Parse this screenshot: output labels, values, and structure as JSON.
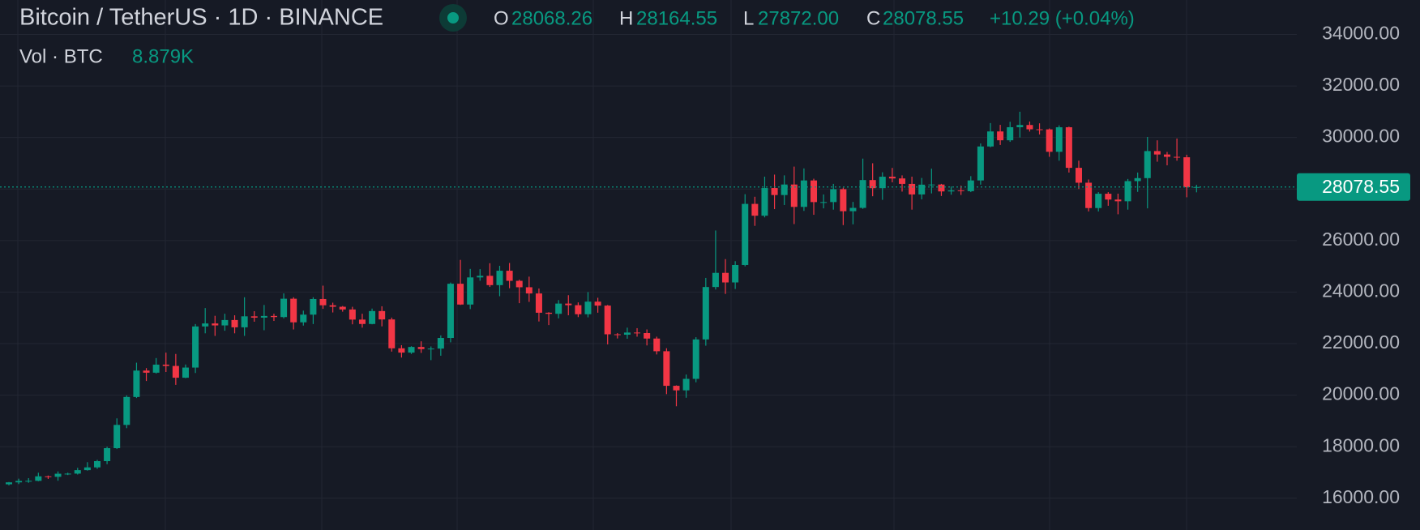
{
  "chart_data": {
    "type": "candlestick",
    "header": {
      "title": "Bitcoin / TetherUS · 1D · BINANCE",
      "open_label": "O",
      "open": "28068.26",
      "high_label": "H",
      "high": "28164.55",
      "low_label": "L",
      "low": "27872.00",
      "close_label": "C",
      "close": "28078.55",
      "change": "+10.29 (+0.04%)",
      "volume_label": "Vol · BTC",
      "volume": "8.879K"
    },
    "up_color": "#089981",
    "down_color": "#f23645",
    "open": [
      16541,
      16616,
      16672,
      16675,
      16850,
      16831,
      16951,
      16955,
      17091,
      17197,
      17440,
      17944,
      18846,
      19930,
      20954,
      20872,
      21185,
      21134,
      20677,
      21071,
      22667,
      22783,
      22707,
      22916,
      22633,
      23060,
      23009,
      23074,
      23031,
      23743,
      22827,
      23125,
      23732,
      23489,
      23431,
      23326,
      22933,
      22763,
      23264,
      22939,
      21819,
      21651,
      21870,
      21788,
      21808,
      22220,
      24324,
      23517,
      24570,
      24631,
      24271,
      24829,
      24437,
      24188,
      23947,
      23199,
      23157,
      23554,
      23492,
      23141,
      23629,
      23476,
      22362,
      22346,
      22430,
      22410,
      22197,
      21705,
      20363,
      20187,
      20633,
      22163,
      24197,
      24746,
      24375,
      25052,
      27423,
      26965,
      28038,
      27767,
      28175,
      27307,
      28333,
      27493,
      27494,
      27994,
      27139,
      27268,
      28348,
      28033,
      28478,
      28411,
      28199,
      27790,
      28169,
      28175,
      27907,
      27948,
      27917,
      28333,
      29652,
      30235,
      29892,
      30399,
      30485,
      30318,
      30315,
      29445,
      30397,
      28822,
      28245,
      27262,
      27817,
      27591,
      27525,
      28307,
      28423,
      29473,
      29340,
      29249,
      29233,
      28068.26
    ],
    "high": [
      16630,
      16760,
      16780,
      16990,
      16880,
      17040,
      16990,
      17180,
      17400,
      17490,
      18000,
      19100,
      19990,
      21260,
      21050,
      21440,
      21650,
      21600,
      21190,
      22760,
      23380,
      23080,
      23160,
      23100,
      23800,
      23260,
      23500,
      23160,
      23950,
      23800,
      23280,
      23800,
      24250,
      23590,
      23460,
      23430,
      23160,
      23360,
      23450,
      23010,
      21940,
      21900,
      22090,
      21890,
      22320,
      24370,
      25250,
      24900,
      24890,
      25120,
      25020,
      25130,
      24480,
      24600,
      24140,
      23220,
      23690,
      23880,
      23600,
      24000,
      23780,
      23500,
      22410,
      22620,
      22600,
      22550,
      22270,
      21820,
      20380,
      20800,
      22250,
      24550,
      26390,
      25280,
      25200,
      27800,
      27700,
      28480,
      28560,
      28530,
      28870,
      28800,
      28400,
      27790,
      28200,
      28050,
      27500,
      29180,
      29000,
      28650,
      28820,
      28530,
      28480,
      28430,
      28790,
      28200,
      28100,
      28130,
      28500,
      29770,
      30560,
      30490,
      30610,
      31000,
      30620,
      30550,
      30350,
      30470,
      30420,
      29100,
      28370,
      27880,
      27880,
      27820,
      28390,
      28640,
      30020,
      29890,
      29440,
      29960,
      29330,
      28164.55
    ],
    "low": [
      16500,
      16550,
      16600,
      16660,
      16750,
      16680,
      16900,
      16920,
      17070,
      17140,
      17320,
      17910,
      18720,
      19890,
      20550,
      20840,
      20900,
      20400,
      20660,
      20860,
      22400,
      22300,
      22500,
      22400,
      22300,
      22850,
      22520,
      22880,
      22980,
      22550,
      22700,
      22760,
      23350,
      23210,
      23240,
      22750,
      22620,
      22750,
      22670,
      21690,
      21460,
      21600,
      21640,
      21360,
      21530,
      22050,
      23500,
      23340,
      24440,
      24200,
      23840,
      24150,
      23570,
      23620,
      22860,
      22720,
      22980,
      23100,
      23030,
      23020,
      23200,
      21970,
      22200,
      22190,
      22270,
      21930,
      21580,
      20040,
      19570,
      19900,
      20500,
      21920,
      24100,
      23930,
      24120,
      25000,
      26570,
      26900,
      27220,
      27380,
      26640,
      27150,
      27000,
      27250,
      27200,
      26600,
      26630,
      27230,
      27720,
      27580,
      28260,
      27900,
      27200,
      27600,
      27830,
      27730,
      27780,
      27770,
      27880,
      28170,
      29620,
      29710,
      29830,
      30000,
      30230,
      30120,
      29250,
      29100,
      28640,
      28000,
      27130,
      27130,
      27350,
      27020,
      27200,
      27890,
      27250,
      29060,
      28920,
      29100,
      27680,
      27872
    ],
    "close": [
      16616,
      16672,
      16675,
      16850,
      16831,
      16951,
      16955,
      17091,
      17197,
      17440,
      17944,
      18846,
      19930,
      20954,
      20872,
      21185,
      21134,
      20677,
      21071,
      22667,
      22783,
      22707,
      22916,
      22633,
      23060,
      23009,
      23074,
      23031,
      23743,
      22827,
      23125,
      23732,
      23489,
      23431,
      23326,
      22933,
      22763,
      23264,
      22939,
      21819,
      21651,
      21870,
      21788,
      21808,
      22220,
      24324,
      23517,
      24570,
      24631,
      24271,
      24829,
      24437,
      24188,
      23947,
      23199,
      23157,
      23554,
      23492,
      23141,
      23629,
      23476,
      22362,
      22346,
      22430,
      22410,
      22197,
      21705,
      20363,
      20187,
      20633,
      22163,
      24197,
      24746,
      24375,
      25052,
      27423,
      26965,
      28038,
      27767,
      28175,
      27307,
      28333,
      27493,
      27494,
      27994,
      27139,
      27268,
      28348,
      28033,
      28478,
      28411,
      28199,
      27790,
      28169,
      28175,
      27907,
      27948,
      27917,
      28333,
      29652,
      30235,
      29892,
      30399,
      30485,
      30318,
      30315,
      29445,
      30397,
      28822,
      28245,
      27262,
      27817,
      27591,
      27525,
      28307,
      28423,
      29473,
      29340,
      29249,
      29233,
      28068,
      28078.55
    ],
    "ylim": [
      14767,
      35336
    ],
    "yticks": [
      {
        "value": 16000,
        "label": "16000.00"
      },
      {
        "value": 18000,
        "label": "18000.00"
      },
      {
        "value": 20000,
        "label": "20000.00"
      },
      {
        "value": 22000,
        "label": "22000.00"
      },
      {
        "value": 24000,
        "label": "24000.00"
      },
      {
        "value": 26000,
        "label": "26000.00"
      },
      {
        "value": 28000,
        "label": "28000.00"
      },
      {
        "value": 30000,
        "label": "30000.00"
      },
      {
        "value": 32000,
        "label": "32000.00"
      },
      {
        "value": 34000,
        "label": "34000.00"
      }
    ],
    "grid": true
  }
}
